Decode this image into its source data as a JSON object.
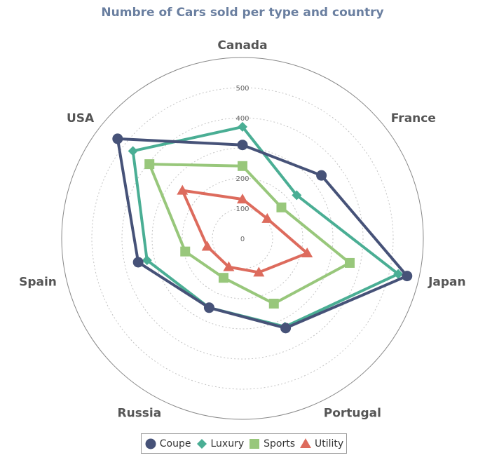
{
  "chart_data": {
    "type": "radar",
    "title": "Numbre of Cars sold per type and country",
    "categories": [
      "Canada",
      "France",
      "Japan",
      "Portugal",
      "Russia",
      "Spain",
      "USA"
    ],
    "radial_ticks": [
      "0",
      "100",
      "200",
      "400",
      "500"
    ],
    "rlim": [
      0,
      500
    ],
    "grid": "dotted circles",
    "legend_position": "bottom",
    "series": [
      {
        "name": "Coupe",
        "color": "#465278",
        "marker": "circle",
        "values": [
          310,
          335,
          560,
          330,
          255,
          355,
          530
        ]
      },
      {
        "name": "Luxury",
        "color": "#4aae94",
        "marker": "diamond",
        "values": [
          370,
          230,
          530,
          325,
          255,
          325,
          465
        ]
      },
      {
        "name": "Sports",
        "color": "#98c77b",
        "marker": "square",
        "values": [
          240,
          165,
          365,
          240,
          145,
          195,
          395
        ]
      },
      {
        "name": "Utility",
        "color": "#dd6b5d",
        "marker": "triangle",
        "values": [
          130,
          105,
          220,
          125,
          105,
          120,
          255
        ]
      }
    ]
  }
}
